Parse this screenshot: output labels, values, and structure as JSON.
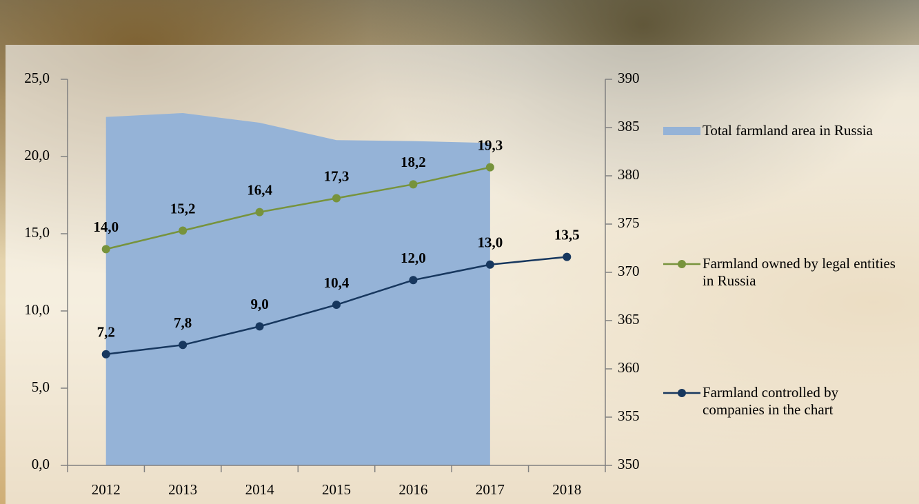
{
  "chart_data": {
    "type": "combo",
    "categories": [
      "2012",
      "2013",
      "2014",
      "2015",
      "2016",
      "2017",
      "2018"
    ],
    "series": [
      {
        "name": "Total farmland area in Russia",
        "type": "area",
        "axis": "y2",
        "color": "#95b3d7",
        "values": [
          386.1,
          386.5,
          385.5,
          383.7,
          383.6,
          383.4,
          null
        ]
      },
      {
        "name": "Farmland owned by legal entities in Russia",
        "type": "line",
        "color": "#77933c",
        "values": [
          14.0,
          15.2,
          16.4,
          17.3,
          18.2,
          19.3,
          null
        ],
        "value_labels": [
          "14,0",
          "15,2",
          "16,4",
          "17,3",
          "18,2",
          "19,3",
          null
        ]
      },
      {
        "name": "Farmland controlled by companies in the chart",
        "type": "line",
        "color": "#17375e",
        "values": [
          7.2,
          7.8,
          9.0,
          10.4,
          12.0,
          13.0,
          13.5
        ],
        "value_labels": [
          "7,2",
          "7,8",
          "9,0",
          "10,4",
          "12,0",
          "13,0",
          "13,5"
        ]
      }
    ],
    "ylim": [
      0,
      25
    ],
    "yticks": [
      {
        "value": 0,
        "label": "0,0"
      },
      {
        "value": 5,
        "label": "5,0"
      },
      {
        "value": 10,
        "label": "10,0"
      },
      {
        "value": 15,
        "label": "15,0"
      },
      {
        "value": 20,
        "label": "20,0"
      },
      {
        "value": 25,
        "label": "25,0"
      }
    ],
    "y2lim": [
      350,
      390
    ],
    "y2ticks": [
      350,
      355,
      360,
      365,
      370,
      375,
      380,
      385,
      390
    ]
  }
}
